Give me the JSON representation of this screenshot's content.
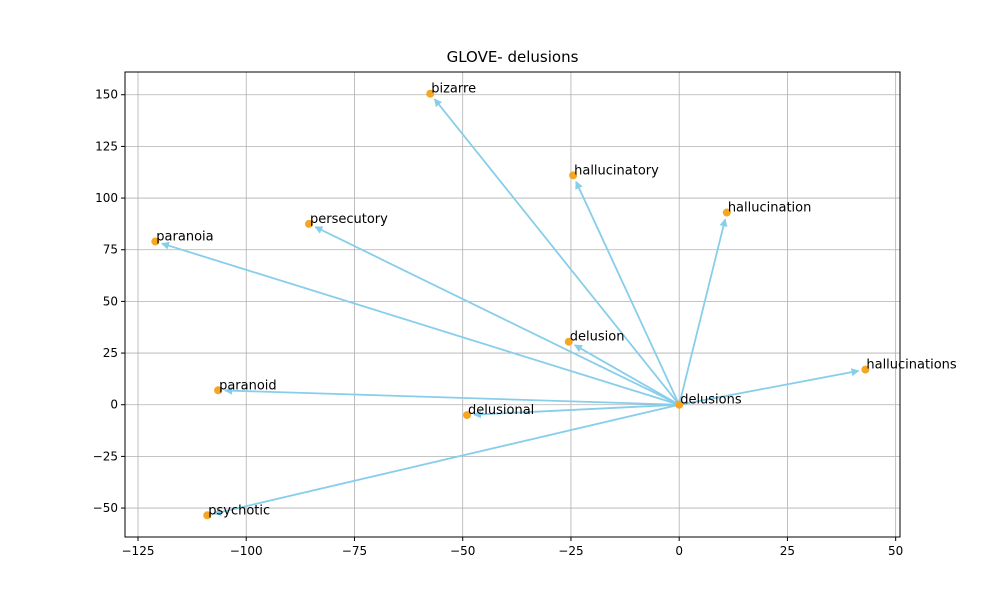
{
  "chart_data": {
    "type": "scatter",
    "title": "GLOVE- delusions",
    "xlabel": "",
    "ylabel": "",
    "xlim": [
      -128,
      51
    ],
    "ylim": [
      -64,
      161
    ],
    "x_ticks": [
      -125,
      -100,
      -75,
      -50,
      -25,
      0,
      25,
      50
    ],
    "y_ticks": [
      -50,
      -25,
      0,
      25,
      50,
      75,
      100,
      125,
      150
    ],
    "grid": true,
    "origin": {
      "label": "delusions",
      "x": 0,
      "y": 0
    },
    "points": [
      {
        "label": "bizarre",
        "x": -57.5,
        "y": 150.5
      },
      {
        "label": "hallucinatory",
        "x": -24.5,
        "y": 111
      },
      {
        "label": "hallucination",
        "x": 11,
        "y": 93
      },
      {
        "label": "persecutory",
        "x": -85.5,
        "y": 87.5
      },
      {
        "label": "paranoia",
        "x": -121,
        "y": 79
      },
      {
        "label": "delusion",
        "x": -25.5,
        "y": 30.5
      },
      {
        "label": "hallucinations",
        "x": 43,
        "y": 17
      },
      {
        "label": "paranoid",
        "x": -106.5,
        "y": 7
      },
      {
        "label": "delusional",
        "x": -49,
        "y": -5
      },
      {
        "label": "psychotic",
        "x": -109,
        "y": -53.5
      }
    ],
    "colors": {
      "arrow": "#87ceeb",
      "point": "#f5a623",
      "grid": "#b0b0b0"
    }
  }
}
